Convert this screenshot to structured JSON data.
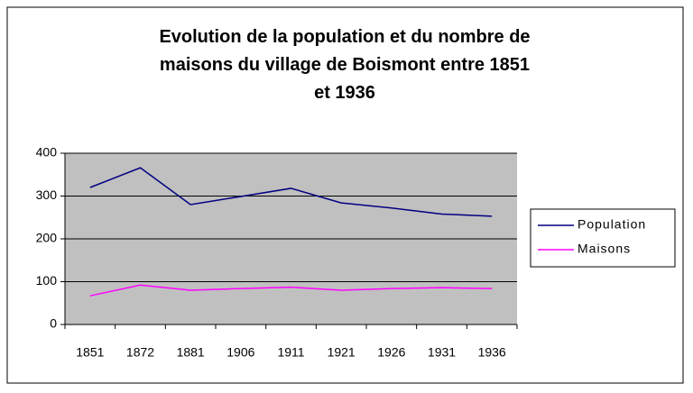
{
  "chart_data": {
    "type": "line",
    "title": "Evolution de la population et du nombre de maisons du village de Boismont entre 1851 et 1936",
    "categories": [
      "1851",
      "1872",
      "1881",
      "1906",
      "1911",
      "1921",
      "1926",
      "1931",
      "1936"
    ],
    "series": [
      {
        "name": "Population",
        "color": "#000080",
        "values": [
          320,
          366,
          280,
          299,
          318,
          284,
          272,
          258,
          253
        ]
      },
      {
        "name": "Maisons",
        "color": "#ff00ff",
        "values": [
          67,
          92,
          80,
          84,
          87,
          80,
          84,
          86,
          84
        ]
      }
    ],
    "ylim": [
      0,
      400
    ],
    "yticks": [
      0,
      100,
      200,
      300,
      400
    ],
    "grid": true,
    "legend": "right"
  }
}
